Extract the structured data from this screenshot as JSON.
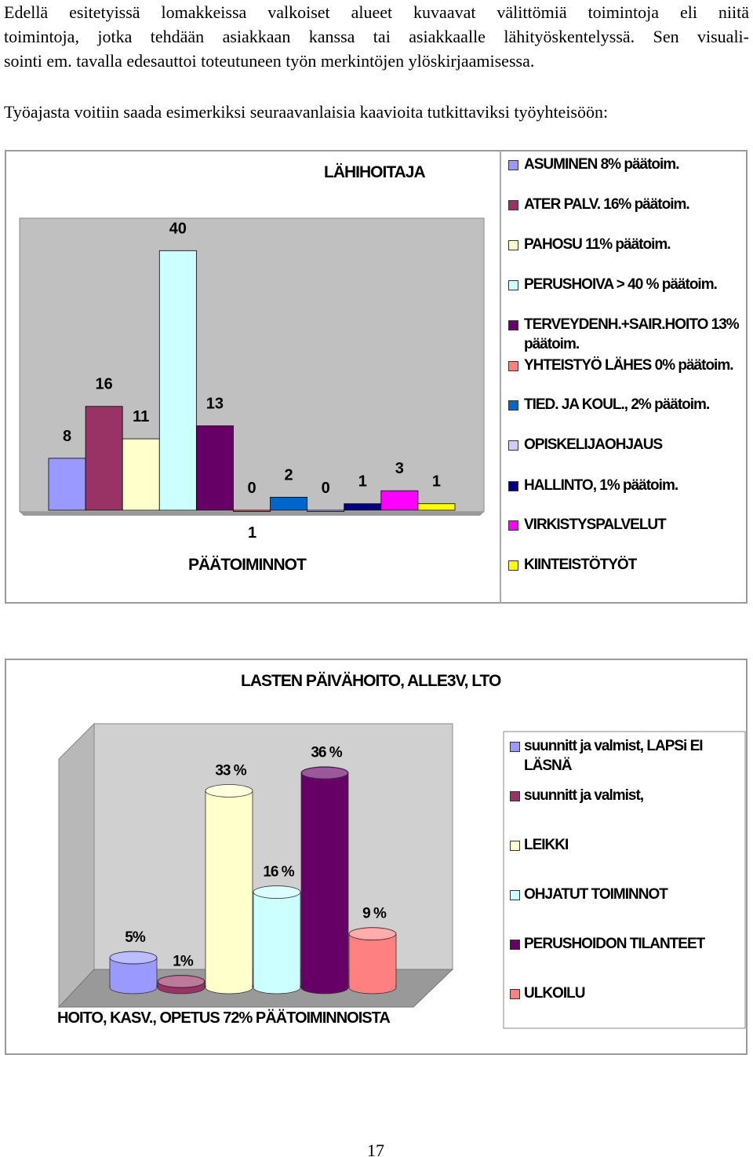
{
  "paragraphs": [
    {
      "lines": [
        "Edellä esitetyissä lomakkeissa valkoiset alueet kuvaavat välittömiä toimintoja eli niitä",
        "toimintoja, jotka tehdään asiakkaan kanssa tai asiakkaalle lähityöskentelyssä. Sen visuali-",
        "sointi em. tavalla edesauttoi toteutuneen työn merkintöjen ylöskirjaamisessa."
      ]
    },
    {
      "lines": [
        "Työajasta voitiin saada esimerkiksi seuraavanlaisia kaavioita tutkittaviksi työyhteisöön:"
      ]
    }
  ],
  "chart_data": [
    {
      "type": "bar",
      "title": "LÄHIHOITAJA",
      "x_label": "PÄÄTOIMINNOT",
      "categories": [
        "1"
      ],
      "ylim": [
        0,
        45
      ],
      "series": [
        {
          "name": "ASUMINEN 8% päätoim.",
          "color": "#9999ff",
          "values": [
            8
          ]
        },
        {
          "name": "ATER PALV.  16% päätoim.",
          "color": "#993366",
          "values": [
            16
          ]
        },
        {
          "name": "PAHOSU  11% päätoim.",
          "color": "#ffffcc",
          "values": [
            11
          ]
        },
        {
          "name": "PERUSHOIVA  > 40 % päätoim.",
          "color": "#ccffff",
          "values": [
            40
          ]
        },
        {
          "name": "TERVEYDENH.+SAIR.HOITO 13% päätoim.",
          "color": "#660066",
          "values": [
            13
          ]
        },
        {
          "name": "YHTEISTYÖ  LÄHES 0% päätoim.",
          "color": "#ff8080",
          "values": [
            0
          ]
        },
        {
          "name": "TIED. JA KOUL., 2% päätoim.",
          "color": "#0066cc",
          "values": [
            2
          ]
        },
        {
          "name": "OPISKELIJAOHJAUS",
          "color": "#ccccff",
          "values": [
            0
          ]
        },
        {
          "name": "HALLINTO, 1% päätoim.",
          "color": "#000080",
          "values": [
            1
          ]
        },
        {
          "name": "VIRKISTYSPALVELUT",
          "color": "#ff00ff",
          "values": [
            3
          ]
        },
        {
          "name": "KIINTEISTÖTYÖT",
          "color": "#ffff00",
          "values": [
            1
          ]
        }
      ]
    },
    {
      "type": "cylinder",
      "title": "LASTEN PÄIVÄHOITO, ALLE3V, LTO",
      "x_label": "HOITO, KASV., OPETUS 72% PÄÄTOIMINNOISTA",
      "categories": [
        null
      ],
      "ylim": [
        0,
        44
      ],
      "series": [
        {
          "name": "suunnitt ja valmist, LAPSi EI LÄSNÄ",
          "color": "#9999ff",
          "values": [
            5
          ],
          "value_labels": [
            "5%"
          ]
        },
        {
          "name": "suunnitt ja valmist,",
          "color": "#993366",
          "values": [
            1
          ],
          "value_labels": [
            "1%"
          ]
        },
        {
          "name": "LEIKKI",
          "color": "#ffffcc",
          "values": [
            33
          ],
          "value_labels": [
            "33 %"
          ]
        },
        {
          "name": "OHJATUT TOIMINNOT",
          "color": "#ccffff",
          "values": [
            16
          ],
          "value_labels": [
            "16 %"
          ]
        },
        {
          "name": "PERUSHOIDON TILANTEET",
          "color": "#660066",
          "values": [
            36
          ],
          "value_labels": [
            "36 %"
          ]
        },
        {
          "name": "ULKOILU",
          "color": "#ff8080",
          "values": [
            9
          ],
          "value_labels": [
            "9 %"
          ]
        }
      ]
    }
  ],
  "page_number": "17"
}
